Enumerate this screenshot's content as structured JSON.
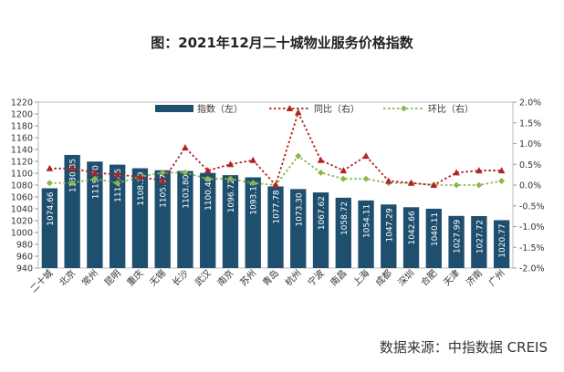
{
  "title": "图：2021年12月二十城物业服务价格指数",
  "source": "数据来源：中指数据 CREIS",
  "colors": {
    "bar": "#1e4f6e",
    "yoy": "#b22222",
    "mom": "#8cb84a",
    "grid": "#d9d9d9"
  },
  "chart_data": {
    "type": "bar",
    "categories": [
      "二十城",
      "北京",
      "常州",
      "昆明",
      "重庆",
      "无锡",
      "长沙",
      "武汉",
      "南京",
      "苏州",
      "青岛",
      "杭州",
      "宁波",
      "南昌",
      "上海",
      "成都",
      "深圳",
      "合肥",
      "天津",
      "济南",
      "广州"
    ],
    "left_axis": {
      "ylim": [
        940,
        1220
      ],
      "ticks": [
        940,
        960,
        980,
        1000,
        1020,
        1040,
        1060,
        1080,
        1100,
        1120,
        1140,
        1160,
        1180,
        1200,
        1220
      ]
    },
    "right_axis": {
      "ylim": [
        -2.0,
        2.0
      ],
      "ticks": [
        "-2.0%",
        "-1.5%",
        "-1.0%",
        "-0.5%",
        "0.0%",
        "0.5%",
        "1.0%",
        "1.5%",
        "2.0%"
      ]
    },
    "series": [
      {
        "name": "指数（左）",
        "type": "bar",
        "axis": "left",
        "labels": [
          "1074.66",
          "1130.85",
          "1119.70",
          "1114.45",
          "1108.39",
          "1105.07",
          "1103.80",
          "1100.48",
          "1096.72",
          "1093.11",
          "1077.78",
          "1073.30",
          "1067.62",
          "1058.72",
          "1054.11",
          "1047.29",
          "1042.66",
          "1040.11",
          "1027.99",
          "1027.72",
          "1020.77"
        ],
        "values": [
          1074.66,
          1130.85,
          1119.7,
          1114.45,
          1108.39,
          1105.07,
          1103.8,
          1100.48,
          1096.72,
          1093.11,
          1077.78,
          1073.3,
          1067.62,
          1058.72,
          1054.11,
          1047.29,
          1042.66,
          1040.11,
          1027.99,
          1027.72,
          1020.77
        ]
      },
      {
        "name": "同比（右）",
        "type": "line",
        "axis": "right",
        "values": [
          0.4,
          0.4,
          0.3,
          0.25,
          0.2,
          0.1,
          0.9,
          0.35,
          0.5,
          0.6,
          0.0,
          1.75,
          0.6,
          0.35,
          0.7,
          0.1,
          0.05,
          0.0,
          0.3,
          0.35,
          0.35
        ]
      },
      {
        "name": "环比（右）",
        "type": "line",
        "axis": "right",
        "values": [
          0.05,
          0.05,
          0.15,
          0.05,
          0.2,
          0.3,
          0.3,
          0.15,
          0.15,
          0.05,
          0.0,
          0.7,
          0.3,
          0.15,
          0.15,
          0.05,
          0.05,
          0.0,
          0.0,
          0.0,
          0.1
        ]
      }
    ]
  }
}
